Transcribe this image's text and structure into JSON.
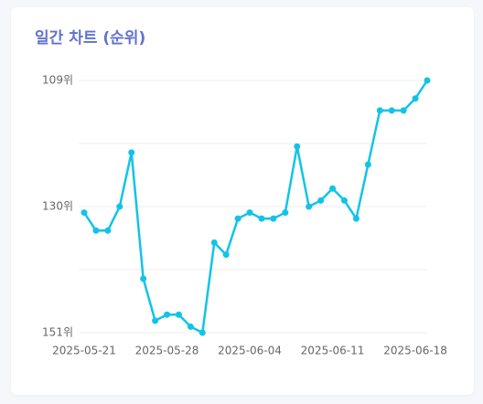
{
  "chart_data": {
    "type": "line",
    "title": "일간 차트 (순위)",
    "x": [
      "2025-05-21",
      "2025-05-22",
      "2025-05-23",
      "2025-05-24",
      "2025-05-25",
      "2025-05-26",
      "2025-05-27",
      "2025-05-28",
      "2025-05-29",
      "2025-05-30",
      "2025-05-31",
      "2025-06-01",
      "2025-06-02",
      "2025-06-03",
      "2025-06-04",
      "2025-06-05",
      "2025-06-06",
      "2025-06-07",
      "2025-06-08",
      "2025-06-09",
      "2025-06-10",
      "2025-06-11",
      "2025-06-12",
      "2025-06-13",
      "2025-06-14",
      "2025-06-15",
      "2025-06-16",
      "2025-06-17",
      "2025-06-18",
      "2025-06-19"
    ],
    "series": [
      {
        "color": "#12c3e8",
        "values": [
          131,
          134,
          134,
          130,
          121,
          142,
          149,
          148,
          148,
          150,
          151,
          136,
          138,
          132,
          131,
          132,
          132,
          131,
          120,
          130,
          129,
          127,
          129,
          132,
          123,
          114,
          114,
          114,
          112,
          109
        ]
      }
    ],
    "xticks": [
      "2025-05-21",
      "2025-05-28",
      "2025-06-04",
      "2025-06-11",
      "2025-06-18"
    ],
    "ylim": [
      109,
      151
    ],
    "y_inverted": true,
    "yticks": [
      {
        "value": 109,
        "label": "109위"
      },
      {
        "value": 130,
        "label": "130위"
      },
      {
        "value": 151,
        "label": "151위"
      }
    ],
    "minor_yticks": [
      119.5,
      140.5
    ],
    "grid": true
  }
}
